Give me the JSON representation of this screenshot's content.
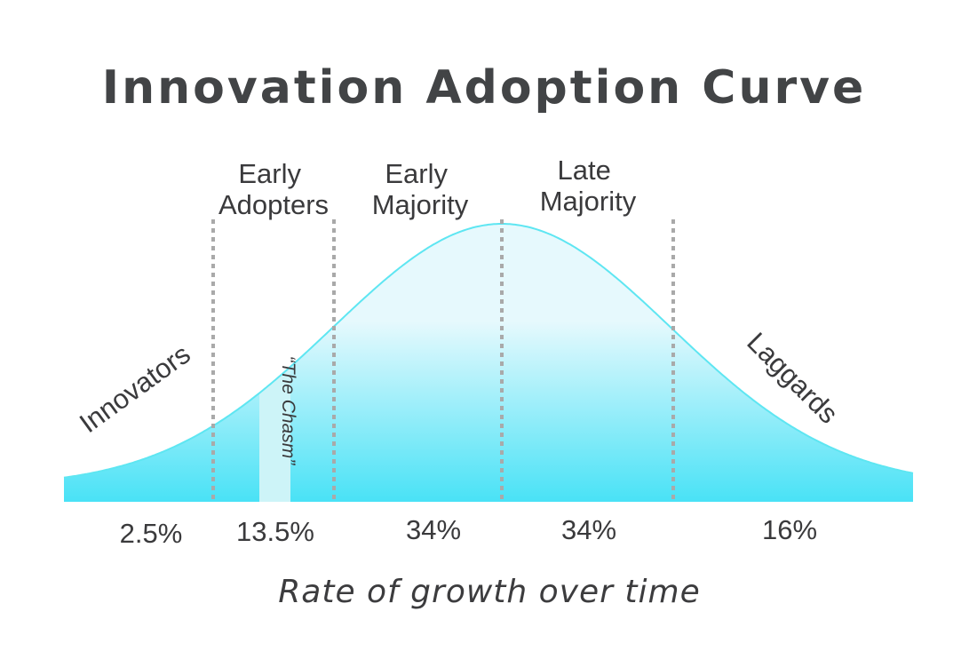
{
  "title": "Innovation Adoption Curve",
  "caption": "Rate of growth over time",
  "chasm_label": "“The Chasm”",
  "segments": [
    {
      "lines": [
        "Innovators"
      ],
      "share": "2.5%"
    },
    {
      "lines": [
        "Early",
        "Adopters"
      ],
      "share": "13.5%"
    },
    {
      "lines": [
        "Early",
        "Majority"
      ],
      "share": "34%"
    },
    {
      "lines": [
        "Late",
        "Majority"
      ],
      "share": "34%"
    },
    {
      "lines": [
        "Laggards"
      ],
      "share": "16%"
    }
  ],
  "colors": {
    "curve_stroke": "#5ee6f2",
    "fill_top": "#e6f9fd",
    "fill_bottom": "#49e2f6",
    "chasm": "#cdf4f8"
  }
}
